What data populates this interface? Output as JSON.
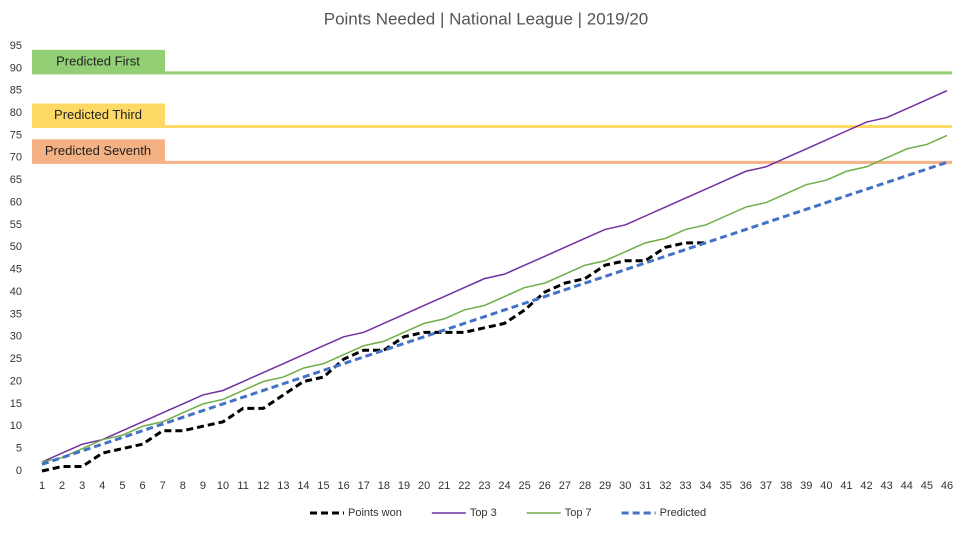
{
  "chart_data": {
    "type": "line",
    "title": "Points Needed  | National League | 2019/20",
    "categories": [
      1,
      2,
      3,
      4,
      5,
      6,
      7,
      8,
      9,
      10,
      11,
      12,
      13,
      14,
      15,
      16,
      17,
      18,
      19,
      20,
      21,
      22,
      23,
      24,
      25,
      26,
      27,
      28,
      29,
      30,
      31,
      32,
      33,
      34,
      35,
      36,
      37,
      38,
      39,
      40,
      41,
      42,
      43,
      44,
      45,
      46
    ],
    "series": [
      {
        "name": "Points won",
        "color": "#000000",
        "dash": true,
        "values": [
          0,
          1,
          1,
          4,
          5,
          6,
          9,
          9,
          10,
          11,
          14,
          14,
          17,
          20,
          21,
          25,
          27,
          27,
          30,
          31,
          31,
          31,
          32,
          33,
          36,
          40,
          42,
          43,
          46,
          47,
          47,
          50,
          51,
          51,
          null,
          null,
          null,
          null,
          null,
          null,
          null,
          null,
          null,
          null,
          null,
          null
        ]
      },
      {
        "name": "Top 3",
        "color": "#7030a0",
        "dash": false,
        "values": [
          2,
          4,
          6,
          7,
          9,
          11,
          13,
          15,
          17,
          18,
          20,
          22,
          24,
          26,
          28,
          30,
          31,
          33,
          35,
          37,
          39,
          41,
          43,
          44,
          46,
          48,
          50,
          52,
          54,
          55,
          57,
          59,
          61,
          63,
          65,
          67,
          68,
          70,
          72,
          74,
          76,
          78,
          79,
          81,
          83,
          85
        ]
      },
      {
        "name": "Top 7",
        "color": "#70ad47",
        "dash": false,
        "values": [
          2,
          3,
          5,
          7,
          8,
          10,
          11,
          13,
          15,
          16,
          18,
          20,
          21,
          23,
          24,
          26,
          28,
          29,
          31,
          33,
          34,
          36,
          37,
          39,
          41,
          42,
          44,
          46,
          47,
          49,
          51,
          52,
          54,
          55,
          57,
          59,
          60,
          62,
          64,
          65,
          67,
          68,
          70,
          72,
          73,
          75
        ]
      },
      {
        "name": "Predicted",
        "color": "#4472c4",
        "dash": true,
        "values": [
          1.5,
          3,
          4.5,
          6,
          7.5,
          9,
          10.5,
          12,
          13.5,
          15,
          16.5,
          18,
          19.5,
          21,
          22.5,
          24,
          25.5,
          27,
          28.5,
          30,
          31.5,
          33,
          34.5,
          36,
          37.5,
          39,
          40.5,
          42,
          43.5,
          45,
          46.5,
          48,
          49.5,
          51,
          52.5,
          54,
          55.5,
          57,
          58.5,
          60,
          61.5,
          63,
          64.5,
          66,
          67.5,
          69
        ]
      }
    ],
    "reference_lines": [
      {
        "label": "Predicted First",
        "value": 89,
        "color": "#93cf75"
      },
      {
        "label": "Predicted Third",
        "value": 77,
        "color": "#ffd966"
      },
      {
        "label": "Predicted Seventh",
        "value": 69,
        "color": "#f4b183"
      }
    ],
    "ylim": [
      0,
      95
    ],
    "yticks": [
      0,
      5,
      10,
      15,
      20,
      25,
      30,
      35,
      40,
      45,
      50,
      55,
      60,
      65,
      70,
      75,
      80,
      85,
      90,
      95
    ],
    "grid": false,
    "legend": "bottom"
  }
}
